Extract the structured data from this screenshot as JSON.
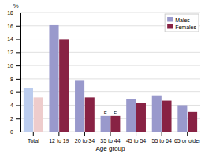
{
  "chart_data": {
    "type": "bar",
    "categories": [
      "Total",
      "12 to 19",
      "20 to 34",
      "35 to 44",
      "45 to 54",
      "55 to 64",
      "65 or older"
    ],
    "series": [
      {
        "name": "Males",
        "color": "#9999cc",
        "colors": [
          "#bbccee",
          "#9999cc",
          "#9999cc",
          "#9999cc",
          "#9999cc",
          "#9999cc",
          "#9999cc"
        ],
        "values": [
          6.6,
          16.1,
          7.7,
          2.4,
          4.9,
          5.4,
          4.0
        ]
      },
      {
        "name": "Females",
        "color": "#882244",
        "colors": [
          "#eecccc",
          "#882244",
          "#882244",
          "#882244",
          "#882244",
          "#882244",
          "#882244"
        ],
        "values": [
          5.2,
          13.9,
          5.2,
          2.4,
          4.4,
          4.7,
          3.0
        ]
      }
    ],
    "xlabel": "Age group",
    "ylabel": "%",
    "ylim": [
      0,
      18
    ],
    "yticks": [
      0,
      2,
      4,
      6,
      8,
      10,
      12,
      14,
      16,
      18
    ],
    "grid": true,
    "legend": "upper right",
    "annotations": [
      {
        "text": "E",
        "category": "35 to 44",
        "series": "Males"
      },
      {
        "text": "E",
        "category": "35 to 44",
        "series": "Females"
      }
    ],
    "background_color": "#ffffff"
  }
}
